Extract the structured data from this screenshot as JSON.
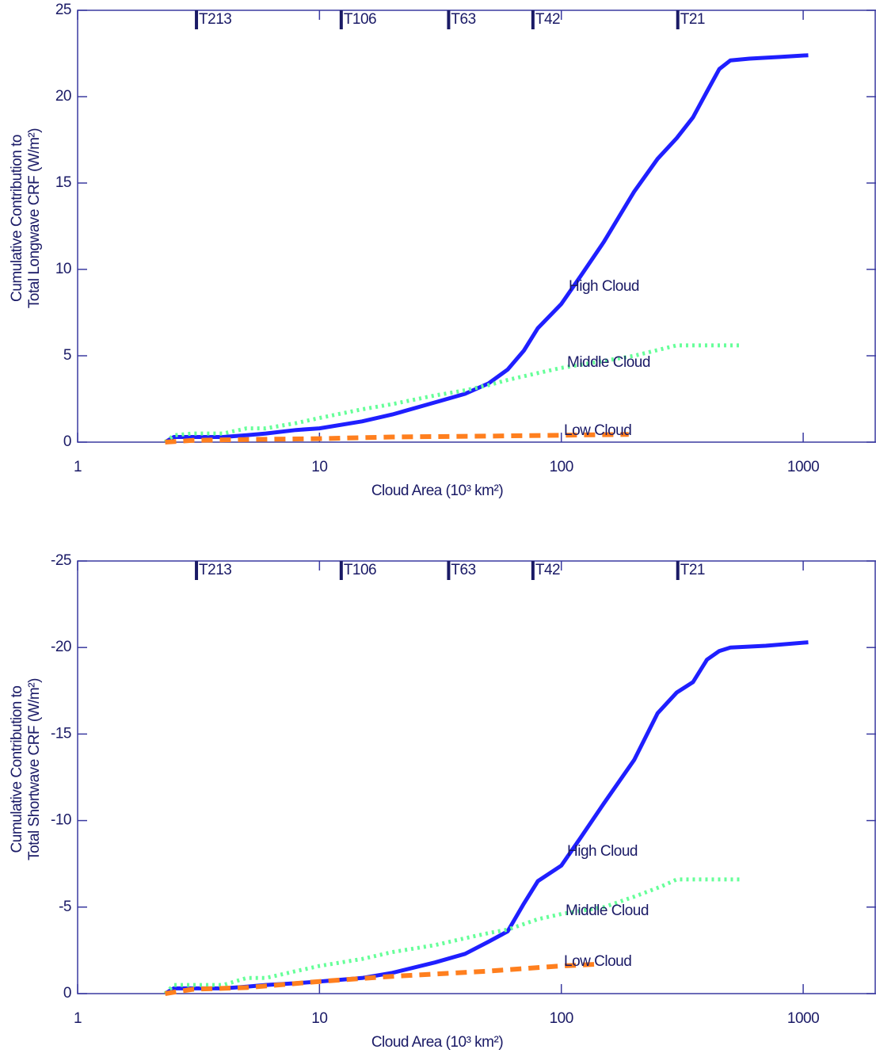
{
  "chart_data": [
    {
      "type": "line",
      "x_label": "Cloud Area (10³ km²)",
      "y_label": [
        "Cumulative Contribution to",
        "Total Longwave CRF (W/m²)"
      ],
      "log_x": true,
      "xlim": [
        1,
        2000
      ],
      "xticks": [
        1,
        10,
        100,
        1000
      ],
      "ylim": [
        0,
        25
      ],
      "yticks": [
        0,
        5,
        10,
        15,
        20,
        25
      ],
      "annotations": [
        {
          "label": "T213",
          "x": 3.1
        },
        {
          "label": "T106",
          "x": 12.3
        },
        {
          "label": "T63",
          "x": 34.2
        },
        {
          "label": "T42",
          "x": 76.3
        },
        {
          "label": "T21",
          "x": 303
        }
      ],
      "series": [
        {
          "name": "High Cloud",
          "color": "#1f1fff",
          "style": "solid",
          "x": [
            2.3,
            2.5,
            3,
            4,
            5,
            6,
            8,
            10,
            15,
            20,
            30,
            40,
            50,
            60,
            70,
            80,
            100,
            120,
            150,
            200,
            250,
            300,
            350,
            400,
            450,
            500,
            600,
            800,
            1050
          ],
          "values": [
            0,
            0.3,
            0.3,
            0.3,
            0.4,
            0.5,
            0.7,
            0.8,
            1.2,
            1.6,
            2.3,
            2.8,
            3.4,
            4.2,
            5.3,
            6.6,
            8.0,
            9.6,
            11.6,
            14.5,
            16.4,
            17.6,
            18.8,
            20.3,
            21.6,
            22.1,
            22.2,
            22.3,
            22.4
          ]
        },
        {
          "name": "Middle Cloud",
          "color": "#66ff99",
          "style": "dotted",
          "x": [
            2.3,
            2.5,
            3,
            4,
            5,
            6,
            8,
            10,
            15,
            20,
            30,
            40,
            50,
            60,
            80,
            100,
            150,
            200,
            300,
            400,
            560
          ],
          "values": [
            0,
            0.4,
            0.5,
            0.5,
            0.8,
            0.8,
            1.1,
            1.4,
            1.9,
            2.2,
            2.7,
            3.0,
            3.3,
            3.6,
            4.0,
            4.3,
            4.7,
            5.0,
            5.6,
            5.6,
            5.6
          ]
        },
        {
          "name": "Low Cloud",
          "color": "#ff7f1e",
          "style": "dashed",
          "x": [
            2.3,
            3,
            5,
            10,
            20,
            50,
            100,
            190
          ],
          "values": [
            0,
            0.1,
            0.15,
            0.2,
            0.3,
            0.35,
            0.4,
            0.45
          ]
        }
      ]
    },
    {
      "type": "line",
      "x_label": "Cloud Area (10³ km²)",
      "y_label": [
        "Cumulative Contribution to",
        "Total Shortwave CRF (W/m²)"
      ],
      "log_x": true,
      "xlim": [
        1,
        2000
      ],
      "xticks": [
        1,
        10,
        100,
        1000
      ],
      "ylim": [
        0,
        -25
      ],
      "yticks": [
        0,
        -5,
        -10,
        -15,
        -20,
        -25
      ],
      "annotations": [
        {
          "label": "T213",
          "x": 3.1
        },
        {
          "label": "T106",
          "x": 12.3
        },
        {
          "label": "T63",
          "x": 34.2
        },
        {
          "label": "T42",
          "x": 76.3
        },
        {
          "label": "T21",
          "x": 303
        }
      ],
      "series": [
        {
          "name": "High Cloud",
          "color": "#1f1fff",
          "style": "solid",
          "x": [
            2.3,
            2.5,
            3,
            4,
            5,
            6,
            8,
            10,
            15,
            20,
            30,
            40,
            50,
            60,
            70,
            80,
            100,
            120,
            150,
            200,
            250,
            300,
            350,
            400,
            450,
            500,
            700,
            1050
          ],
          "values": [
            0,
            -0.3,
            -0.3,
            -0.3,
            -0.4,
            -0.5,
            -0.6,
            -0.7,
            -0.9,
            -1.2,
            -1.8,
            -2.3,
            -3.0,
            -3.6,
            -5.2,
            -6.5,
            -7.4,
            -9.0,
            -11.0,
            -13.5,
            -16.2,
            -17.4,
            -18.0,
            -19.3,
            -19.8,
            -20.0,
            -20.1,
            -20.3
          ]
        },
        {
          "name": "Middle Cloud",
          "color": "#66ff99",
          "style": "dotted",
          "x": [
            2.3,
            2.5,
            3,
            4,
            5,
            6,
            8,
            10,
            15,
            20,
            30,
            40,
            50,
            60,
            80,
            100,
            150,
            200,
            260,
            300,
            320,
            560
          ],
          "values": [
            0,
            -0.5,
            -0.5,
            -0.5,
            -0.9,
            -0.9,
            -1.3,
            -1.6,
            -2.0,
            -2.4,
            -2.8,
            -3.2,
            -3.5,
            -3.7,
            -4.3,
            -4.6,
            -5.0,
            -5.6,
            -6.2,
            -6.6,
            -6.6,
            -6.6
          ]
        },
        {
          "name": "Low Cloud",
          "color": "#ff7f1e",
          "style": "dashed",
          "x": [
            2.3,
            3,
            5,
            10,
            20,
            50,
            100,
            140
          ],
          "values": [
            0,
            -0.25,
            -0.35,
            -0.7,
            -1.0,
            -1.3,
            -1.6,
            -1.7
          ]
        }
      ]
    }
  ]
}
